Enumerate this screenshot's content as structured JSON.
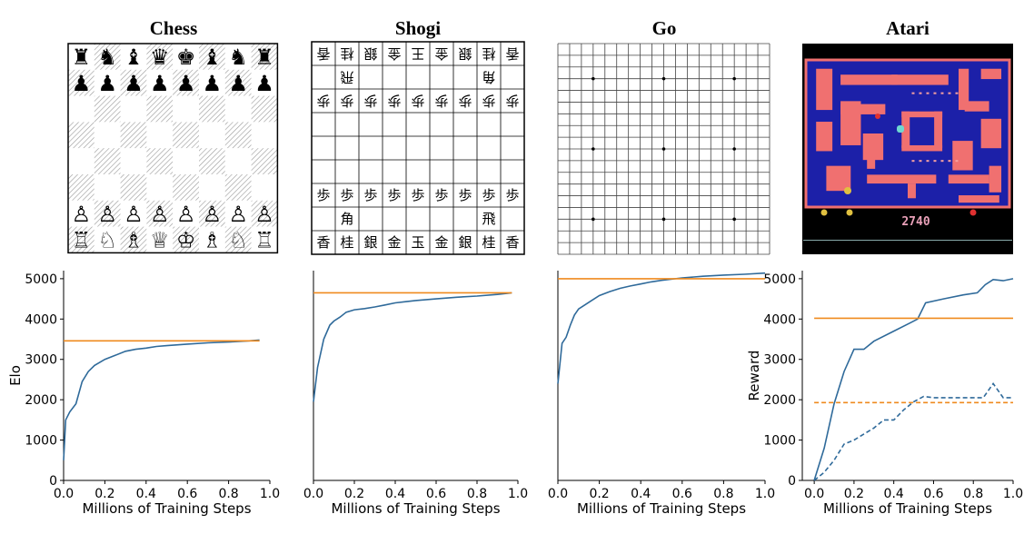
{
  "games": [
    {
      "title": "Chess",
      "board": {
        "type": "chess",
        "rank8": [
          "♜",
          "♞",
          "♝",
          "♛",
          "♚",
          "♝",
          "♞",
          "♜"
        ],
        "rank7": [
          "♟",
          "♟",
          "♟",
          "♟",
          "♟",
          "♟",
          "♟",
          "♟"
        ],
        "rank2": [
          "♙",
          "♙",
          "♙",
          "♙",
          "♙",
          "♙",
          "♙",
          "♙"
        ],
        "rank1": [
          "♖",
          "♘",
          "♗",
          "♕",
          "♔",
          "♗",
          "♘",
          "♖"
        ]
      }
    },
    {
      "title": "Shogi",
      "board": {
        "type": "shogi",
        "row1": [
          "香",
          "桂",
          "銀",
          "金",
          "王",
          "金",
          "銀",
          "桂",
          "香"
        ],
        "row2": [
          "",
          "飛",
          "",
          "",
          "",
          "",
          "",
          "角",
          ""
        ],
        "row3": [
          "歩",
          "歩",
          "歩",
          "歩",
          "歩",
          "歩",
          "歩",
          "歩",
          "歩"
        ],
        "row7": [
          "歩",
          "歩",
          "歩",
          "歩",
          "歩",
          "歩",
          "歩",
          "歩",
          "歩"
        ],
        "row8": [
          "",
          "角",
          "",
          "",
          "",
          "",
          "",
          "飛",
          ""
        ],
        "row9": [
          "香",
          "桂",
          "銀",
          "金",
          "玉",
          "金",
          "銀",
          "桂",
          "香"
        ]
      }
    },
    {
      "title": "Go",
      "board": {
        "type": "go",
        "lines": 19,
        "hoshi": [
          3,
          9,
          15
        ]
      }
    },
    {
      "title": "Atari",
      "board": {
        "type": "atari",
        "score": "2740",
        "colors": {
          "bg": "#000000",
          "maze": "#1c20a8",
          "wall": "#f07070",
          "pellet": "#f5a0a0"
        }
      }
    }
  ],
  "colors": {
    "alphazero": "#2f6a9a",
    "baseline": "#ef8a1e"
  },
  "chart_data": [
    {
      "type": "line",
      "xlabel": "Millions of Training Steps",
      "ylabel": "Elo",
      "xlim": [
        0,
        1.0
      ],
      "ylim": [
        0,
        5200
      ],
      "xticks": [
        "0.0",
        "0.2",
        "0.4",
        "0.6",
        "0.8",
        "1.0"
      ],
      "yticks": [
        "0",
        "1000",
        "2000",
        "3000",
        "4000",
        "5000"
      ],
      "series": [
        {
          "style": "solid",
          "color": "#2f6a9a",
          "x": [
            0,
            0.01,
            0.03,
            0.06,
            0.09,
            0.12,
            0.15,
            0.2,
            0.25,
            0.3,
            0.35,
            0.4,
            0.45,
            0.5,
            0.6,
            0.7,
            0.8,
            0.9,
            0.95
          ],
          "y": [
            500,
            1500,
            1700,
            1900,
            2450,
            2700,
            2850,
            3000,
            3100,
            3200,
            3250,
            3280,
            3320,
            3340,
            3380,
            3410,
            3430,
            3460,
            3480
          ]
        },
        {
          "style": "solid",
          "color": "#ef8a1e",
          "x": [
            0,
            0.95
          ],
          "y": [
            3460,
            3460
          ]
        }
      ]
    },
    {
      "type": "line",
      "xlabel": "Millions of Training Steps",
      "ylabel": "",
      "xlim": [
        0,
        1.0
      ],
      "ylim": [
        0,
        5200
      ],
      "xticks": [
        "0.0",
        "0.2",
        "0.4",
        "0.6",
        "0.8",
        "1.0"
      ],
      "yticks": [],
      "series": [
        {
          "style": "solid",
          "color": "#2f6a9a",
          "x": [
            0,
            0.02,
            0.05,
            0.08,
            0.1,
            0.13,
            0.16,
            0.2,
            0.25,
            0.3,
            0.35,
            0.4,
            0.45,
            0.5,
            0.6,
            0.7,
            0.8,
            0.9,
            0.97
          ],
          "y": [
            1950,
            2800,
            3500,
            3850,
            3950,
            4050,
            4170,
            4230,
            4260,
            4300,
            4350,
            4400,
            4430,
            4460,
            4500,
            4540,
            4570,
            4610,
            4650
          ]
        },
        {
          "style": "solid",
          "color": "#ef8a1e",
          "x": [
            0,
            0.97
          ],
          "y": [
            4650,
            4650
          ]
        }
      ]
    },
    {
      "type": "line",
      "xlabel": "Millions of Training Steps",
      "ylabel": "",
      "xlim": [
        0,
        1.0
      ],
      "ylim": [
        0,
        5200
      ],
      "xticks": [
        "0.0",
        "0.2",
        "0.4",
        "0.6",
        "0.8",
        "1.0"
      ],
      "yticks": [],
      "series": [
        {
          "style": "solid",
          "color": "#2f6a9a",
          "x": [
            0,
            0.02,
            0.04,
            0.06,
            0.08,
            0.1,
            0.13,
            0.16,
            0.2,
            0.25,
            0.3,
            0.35,
            0.4,
            0.45,
            0.5,
            0.6,
            0.7,
            0.8,
            0.9,
            1.0
          ],
          "y": [
            2400,
            3400,
            3550,
            3850,
            4100,
            4250,
            4350,
            4450,
            4580,
            4680,
            4760,
            4820,
            4870,
            4920,
            4960,
            5020,
            5060,
            5090,
            5110,
            5140
          ]
        },
        {
          "style": "solid",
          "color": "#ef8a1e",
          "x": [
            0,
            1.0
          ],
          "y": [
            5000,
            5000
          ]
        }
      ]
    },
    {
      "type": "line",
      "xlabel": "Millions of Training Steps",
      "ylabel": "Reward",
      "xlim": [
        -0.06,
        1.0
      ],
      "ylim": [
        0,
        5200
      ],
      "xticks": [
        "0.0",
        "0.2",
        "0.4",
        "0.6",
        "0.8",
        "1.0"
      ],
      "yticks": [
        "0",
        "1000",
        "2000",
        "3000",
        "4000",
        "5000"
      ],
      "series": [
        {
          "style": "solid",
          "color": "#2f6a9a",
          "x": [
            0,
            0.05,
            0.1,
            0.15,
            0.2,
            0.25,
            0.3,
            0.4,
            0.48,
            0.52,
            0.56,
            0.65,
            0.75,
            0.82,
            0.86,
            0.9,
            0.95,
            1.0
          ],
          "y": [
            0,
            800,
            1900,
            2700,
            3250,
            3250,
            3450,
            3700,
            3900,
            4000,
            4400,
            4500,
            4600,
            4650,
            4850,
            4980,
            4950,
            5000
          ]
        },
        {
          "style": "dashed",
          "color": "#2f6a9a",
          "x": [
            0,
            0.05,
            0.1,
            0.15,
            0.2,
            0.25,
            0.3,
            0.35,
            0.4,
            0.45,
            0.5,
            0.55,
            0.6,
            0.7,
            0.8,
            0.85,
            0.9,
            0.95,
            1.0
          ],
          "y": [
            0,
            200,
            500,
            900,
            1000,
            1150,
            1300,
            1500,
            1500,
            1750,
            1950,
            2080,
            2050,
            2050,
            2050,
            2050,
            2400,
            2050,
            2050
          ]
        },
        {
          "style": "solid",
          "color": "#ef8a1e",
          "x": [
            0,
            1.0
          ],
          "y": [
            4020,
            4020
          ]
        },
        {
          "style": "dashed",
          "color": "#ef8a1e",
          "x": [
            0,
            1.0
          ],
          "y": [
            1930,
            1930
          ]
        }
      ]
    }
  ]
}
